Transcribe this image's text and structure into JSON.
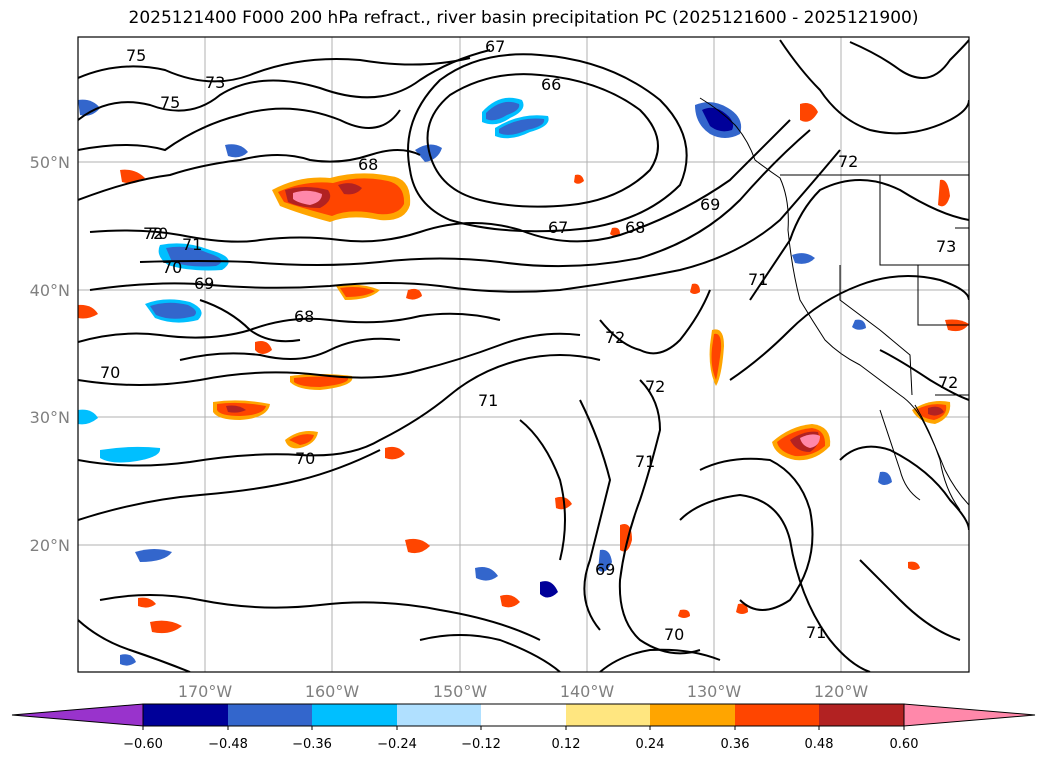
{
  "title": "2025121400 F000 200 hPa refract., river basin precipitation PC (2025121600 - 2025121900)",
  "lat_labels": [
    "50°N",
    "40°N",
    "30°N",
    "20°N"
  ],
  "lon_labels": [
    "170°W",
    "160°W",
    "150°W",
    "140°W",
    "130°W",
    "120°W"
  ],
  "contour_labels": [
    "75",
    "73",
    "75",
    "70",
    "72",
    "71",
    "70",
    "69",
    "68",
    "68",
    "70",
    "70",
    "66",
    "67",
    "67",
    "68",
    "69",
    "71",
    "71",
    "72",
    "72",
    "71",
    "69",
    "70",
    "71",
    "72",
    "72",
    "73"
  ],
  "colorbar": {
    "colors": [
      "#9933cc",
      "#000099",
      "#3366cc",
      "#00bfff",
      "#b0e0ff",
      "#ffffff",
      "#ffe680",
      "#ffa500",
      "#ff4500",
      "#b22222",
      "#ff88aa"
    ],
    "tick_labels": [
      "−0.60",
      "−0.48",
      "−0.36",
      "−0.24",
      "−0.12",
      "0.12",
      "0.24",
      "0.36",
      "0.48",
      "0.60"
    ]
  }
}
